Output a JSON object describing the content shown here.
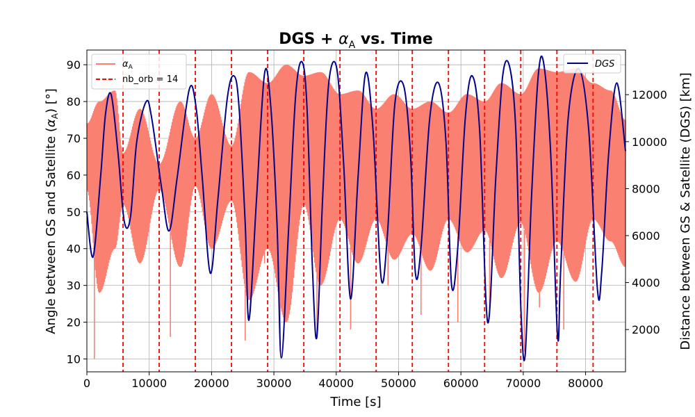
{
  "chart_data": {
    "type": "line",
    "title_main": "DGS + ",
    "title_symbol": "α",
    "title_sub": "A",
    "title_rest": " vs. Time",
    "xlabel": "Time [s]",
    "ylabel_left_main": "Angle between GS and Satellite (",
    "ylabel_left_symbol": "α",
    "ylabel_left_sub": "A",
    "ylabel_left_end": ") [°]",
    "ylabel_right": "Distance between GS & Satellite (DGS) [km]",
    "xlim": [
      0,
      86400
    ],
    "ylim_left": [
      6.5,
      94
    ],
    "ylim_right": [
      200,
      13900
    ],
    "x_ticks": [
      0,
      10000,
      20000,
      30000,
      40000,
      50000,
      60000,
      70000,
      80000
    ],
    "y_left_ticks": [
      10,
      20,
      30,
      40,
      50,
      60,
      70,
      80,
      90
    ],
    "y_right_ticks": [
      2000,
      4000,
      6000,
      8000,
      10000,
      12000
    ],
    "grid": true,
    "colors": {
      "alpha": "#fa8072",
      "dgs": "#00008b",
      "orbit_lines": "#ff0000"
    },
    "legend_left": {
      "placement": "upper-left",
      "entries": [
        {
          "label_main": "α",
          "label_sub": "A",
          "style": "solid"
        },
        {
          "label_main": "nb_orb = 14",
          "label_sub": "",
          "style": "dashed"
        }
      ]
    },
    "legend_right": {
      "placement": "upper-right",
      "entries": [
        {
          "label": "DGS",
          "style": "solid"
        }
      ]
    },
    "orbit_boundaries": [
      5800,
      11600,
      17400,
      23200,
      29000,
      34800,
      40600,
      46400,
      52200,
      58000,
      63800,
      69600,
      75400,
      81200
    ],
    "dgs_series": {
      "name": "DGS",
      "axis": "right",
      "x": [
        0,
        1000,
        2200,
        3000,
        3900,
        5000,
        6000,
        7000,
        8000,
        9500,
        10400,
        12000,
        13200,
        14500,
        16400,
        17500,
        18500,
        19800,
        21000,
        22500,
        23600,
        24400,
        25400,
        26000,
        27200,
        28500,
        29500,
        30500,
        31200,
        32400,
        33500,
        34500,
        35300,
        36200,
        36900,
        37800,
        38800,
        40100,
        41200,
        42300,
        43500,
        44700,
        45900,
        47200,
        48200,
        49400,
        50800,
        51900,
        52700,
        53600,
        55000,
        56400,
        57600,
        58500,
        59500,
        60700,
        61800,
        63000,
        64300,
        65600,
        66700,
        67800,
        68800,
        69600,
        70300,
        71300,
        72400,
        73300,
        74400,
        75500,
        76000,
        77200,
        78900,
        80500,
        81900,
        82600,
        83700,
        85000,
        86400
      ],
      "values": [
        7000,
        5100,
        8500,
        11200,
        12000,
        9500,
        6600,
        6800,
        10000,
        11700,
        11000,
        8000,
        6200,
        8500,
        12200,
        11500,
        8500,
        4400,
        7500,
        11800,
        12800,
        11500,
        6500,
        2400,
        7500,
        12900,
        11500,
        6500,
        800,
        6500,
        12000,
        13400,
        11500,
        4500,
        1700,
        7500,
        12500,
        13100,
        9000,
        3300,
        8500,
        12900,
        10500,
        4200,
        6000,
        11600,
        12400,
        9500,
        4400,
        5500,
        11000,
        12500,
        10000,
        3900,
        5500,
        11000,
        12800,
        10500,
        2300,
        8500,
        12800,
        13200,
        10500,
        3000,
        900,
        7500,
        12800,
        13300,
        9500,
        1700,
        4500,
        11000,
        13100,
        10500,
        3700,
        4500,
        9500,
        12500,
        9600
      ]
    },
    "alpha_series": {
      "name": "α_A",
      "axis": "left",
      "x": [
        0,
        2000,
        4500,
        5800,
        8500,
        11600,
        15000,
        17400,
        20000,
        23200,
        26000,
        29000,
        32000,
        34800,
        37500,
        40600,
        43500,
        46400,
        49300,
        52200,
        55100,
        58000,
        61000,
        63800,
        66500,
        69600,
        72500,
        75400,
        78400,
        81200,
        84000,
        86400
      ],
      "upper": [
        74,
        80,
        83,
        66,
        78,
        63,
        80,
        70,
        82,
        68,
        88,
        85,
        90,
        87,
        88,
        82,
        83,
        78,
        82,
        78,
        80,
        77,
        82,
        80,
        85,
        82,
        89,
        88,
        89,
        85,
        83,
        75
      ],
      "lower": [
        56,
        28,
        40,
        52,
        36,
        56,
        35,
        57,
        40,
        53,
        26,
        40,
        20,
        52,
        30,
        48,
        36,
        48,
        37,
        44,
        34,
        48,
        39,
        45,
        32,
        47,
        28,
        42,
        31,
        48,
        42,
        35
      ],
      "spike_x": [
        1200,
        13400,
        25400,
        28500,
        31000,
        36900,
        42300,
        48300,
        53600,
        59500,
        64600,
        70200,
        72600,
        76500
      ],
      "spike_min": [
        10,
        16,
        15,
        36,
        12,
        16,
        18,
        30,
        22,
        20,
        22,
        12,
        24,
        18
      ]
    }
  }
}
